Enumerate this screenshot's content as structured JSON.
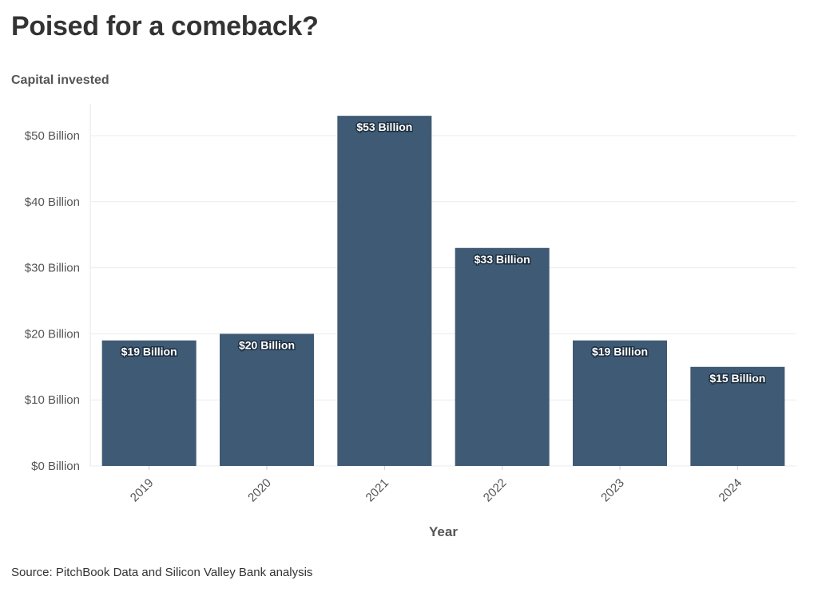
{
  "chart_data": {
    "type": "bar",
    "title": "Poised for a comeback?",
    "subtitle": "Capital invested",
    "xlabel": "Year",
    "ylabel": "",
    "categories": [
      "2019",
      "2020",
      "2021",
      "2022",
      "2023",
      "2024"
    ],
    "values": [
      19,
      20,
      53,
      33,
      19,
      15
    ],
    "data_labels": [
      "$19 Billion",
      "$20 Billion",
      "$53 Billion",
      "$33 Billion",
      "$19 Billion",
      "$15 Billion"
    ],
    "ylim": [
      0,
      55
    ],
    "yticks": [
      0,
      10,
      20,
      30,
      40,
      50
    ],
    "ytick_labels": [
      "$0 Billion",
      "$10 Billion",
      "$20 Billion",
      "$30 Billion",
      "$40 Billion",
      "$50 Billion"
    ],
    "grid": true,
    "bar_color": "#3f5a74",
    "source": "Source: PitchBook Data and Silicon Valley Bank analysis"
  }
}
